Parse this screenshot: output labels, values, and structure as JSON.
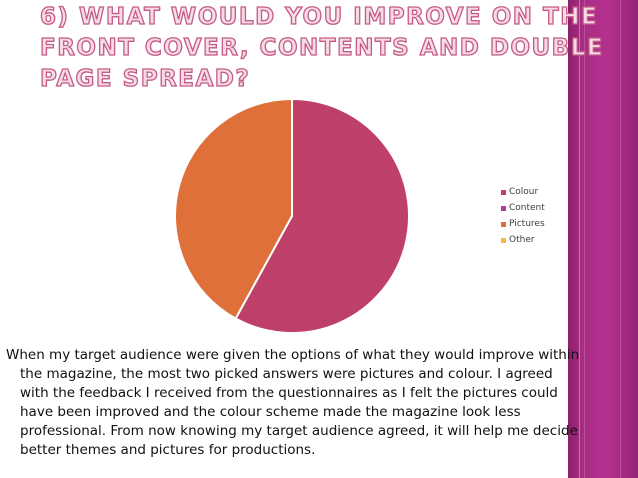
{
  "slide": {
    "title": "6) What would you improve on the front cover, contents and double page spread?",
    "body": "When my target audience were given the options of what they would improve within the magazine, the most two picked answers were pictures and colour. I agreed with the feedback I received from the questionnaires as I felt the pictures could have been improved and the colour scheme made the magazine look less professional. From now knowing my target audience agreed, it will help me decide better themes and pictures for productions."
  },
  "colors": {
    "accent": "#b4308f",
    "colour": "#be3f68",
    "content": "#b13aa0",
    "pictures": "#e0703a",
    "other": "#f5b94a"
  },
  "chart_data": {
    "type": "pie",
    "categories": [
      "Colour",
      "Content",
      "Pictures",
      "Other"
    ],
    "values": [
      58,
      0,
      42,
      0
    ],
    "colors": [
      "#be3f68",
      "#b13aa0",
      "#e0703a",
      "#f5b94a"
    ],
    "legend_position": "right",
    "start_angle_deg": 0,
    "direction": "clockwise"
  }
}
